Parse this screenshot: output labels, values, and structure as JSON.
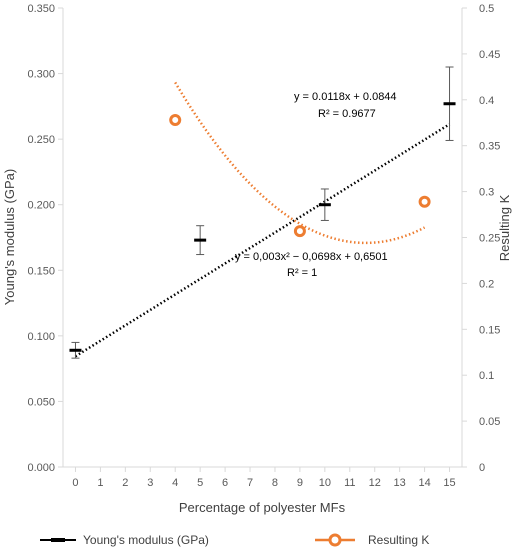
{
  "chart_data": {
    "type": "scatter",
    "xlabel": "Percentage of polyester MFs",
    "x_ticks": [
      0,
      1,
      2,
      3,
      4,
      5,
      6,
      7,
      8,
      9,
      10,
      11,
      12,
      13,
      14,
      15
    ],
    "xlim": [
      -0.5,
      15.5
    ],
    "left_axis": {
      "label": "Young's modulus (GPa)",
      "ylim": [
        0,
        0.35
      ],
      "ticks": [
        "0.000",
        "0.050",
        "0.100",
        "0.150",
        "0.200",
        "0.250",
        "0.300",
        "0.350"
      ],
      "tick_values": [
        0,
        0.05,
        0.1,
        0.15,
        0.2,
        0.25,
        0.3,
        0.35
      ]
    },
    "right_axis": {
      "label": "Resulting K",
      "ylim": [
        0,
        0.5
      ],
      "ticks": [
        "0",
        "0.05",
        "0.1",
        "0.15",
        "0.2",
        "0.25",
        "0.3",
        "0.35",
        "0.4",
        "0.45",
        "0.5"
      ],
      "tick_values": [
        0,
        0.05,
        0.1,
        0.15,
        0.2,
        0.25,
        0.3,
        0.35,
        0.4,
        0.45,
        0.5
      ]
    },
    "series": [
      {
        "name": "Young's modulus (GPa)",
        "axis": "left",
        "color": "#000000",
        "x": [
          0,
          5,
          10,
          15
        ],
        "y": [
          0.089,
          0.173,
          0.2,
          0.277
        ],
        "err": [
          0.006,
          0.011,
          0.012,
          0.028
        ],
        "trendline": {
          "type": "linear",
          "slope": 0.0118,
          "intercept": 0.0844,
          "color": "#000000"
        }
      },
      {
        "name": "Resulting K",
        "axis": "right",
        "color": "#ED7D31",
        "x": [
          4,
          9,
          14
        ],
        "y": [
          0.378,
          0.257,
          0.289
        ],
        "trendline": {
          "type": "poly2",
          "a": 0.003,
          "b": -0.0698,
          "c": 0.6501,
          "color": "#ED7D31"
        }
      }
    ],
    "annotations": {
      "linear_eq": "y = 0.0118x + 0.0844",
      "linear_r2": "R² = 0.9677",
      "poly_eq": "y = 0,003x² − 0,0698x + 0,6501",
      "poly_r2": "R² = 1"
    },
    "legend": {
      "position": "bottom",
      "items": [
        "Young's modulus (GPa)",
        "Resulting K"
      ]
    },
    "grid": false
  }
}
